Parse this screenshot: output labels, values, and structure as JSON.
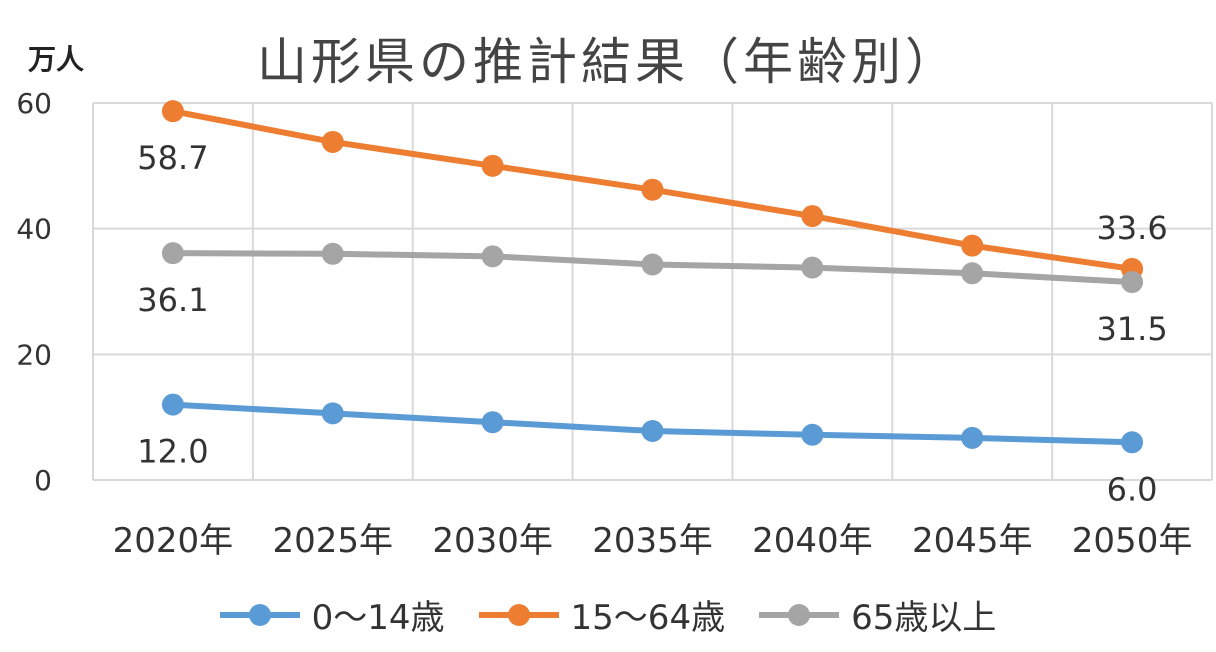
{
  "chart_data": {
    "type": "line",
    "title": "山形県の推計結果（年齢別）",
    "unit_label": "万人",
    "categories": [
      "2020年",
      "2025年",
      "2030年",
      "2035年",
      "2040年",
      "2045年",
      "2050年"
    ],
    "ylim": [
      0,
      60
    ],
    "yticks": [
      "0",
      "20",
      "40",
      "60"
    ],
    "grid": true,
    "legend_position": "bottom",
    "series": [
      {
        "name": "0～14歳",
        "color": "#5B9BD5",
        "values": [
          12.0,
          10.6,
          9.2,
          7.8,
          7.2,
          6.7,
          6.0
        ],
        "labels": [
          {
            "index": 0,
            "text": "12.0",
            "pos": "below"
          },
          {
            "index": 6,
            "text": "6.0",
            "pos": "below"
          }
        ]
      },
      {
        "name": "15～64歳",
        "color": "#ED7D31",
        "values": [
          58.7,
          53.8,
          50.0,
          46.2,
          42.0,
          37.3,
          33.6
        ],
        "labels": [
          {
            "index": 0,
            "text": "58.7",
            "pos": "below"
          },
          {
            "index": 6,
            "text": "33.6",
            "pos": "above"
          }
        ]
      },
      {
        "name": "65歳以上",
        "color": "#A5A5A5",
        "values": [
          36.1,
          36.0,
          35.6,
          34.3,
          33.8,
          32.9,
          31.5
        ],
        "labels": [
          {
            "index": 0,
            "text": "36.1",
            "pos": "below"
          },
          {
            "index": 6,
            "text": "31.5",
            "pos": "below"
          }
        ]
      }
    ]
  }
}
